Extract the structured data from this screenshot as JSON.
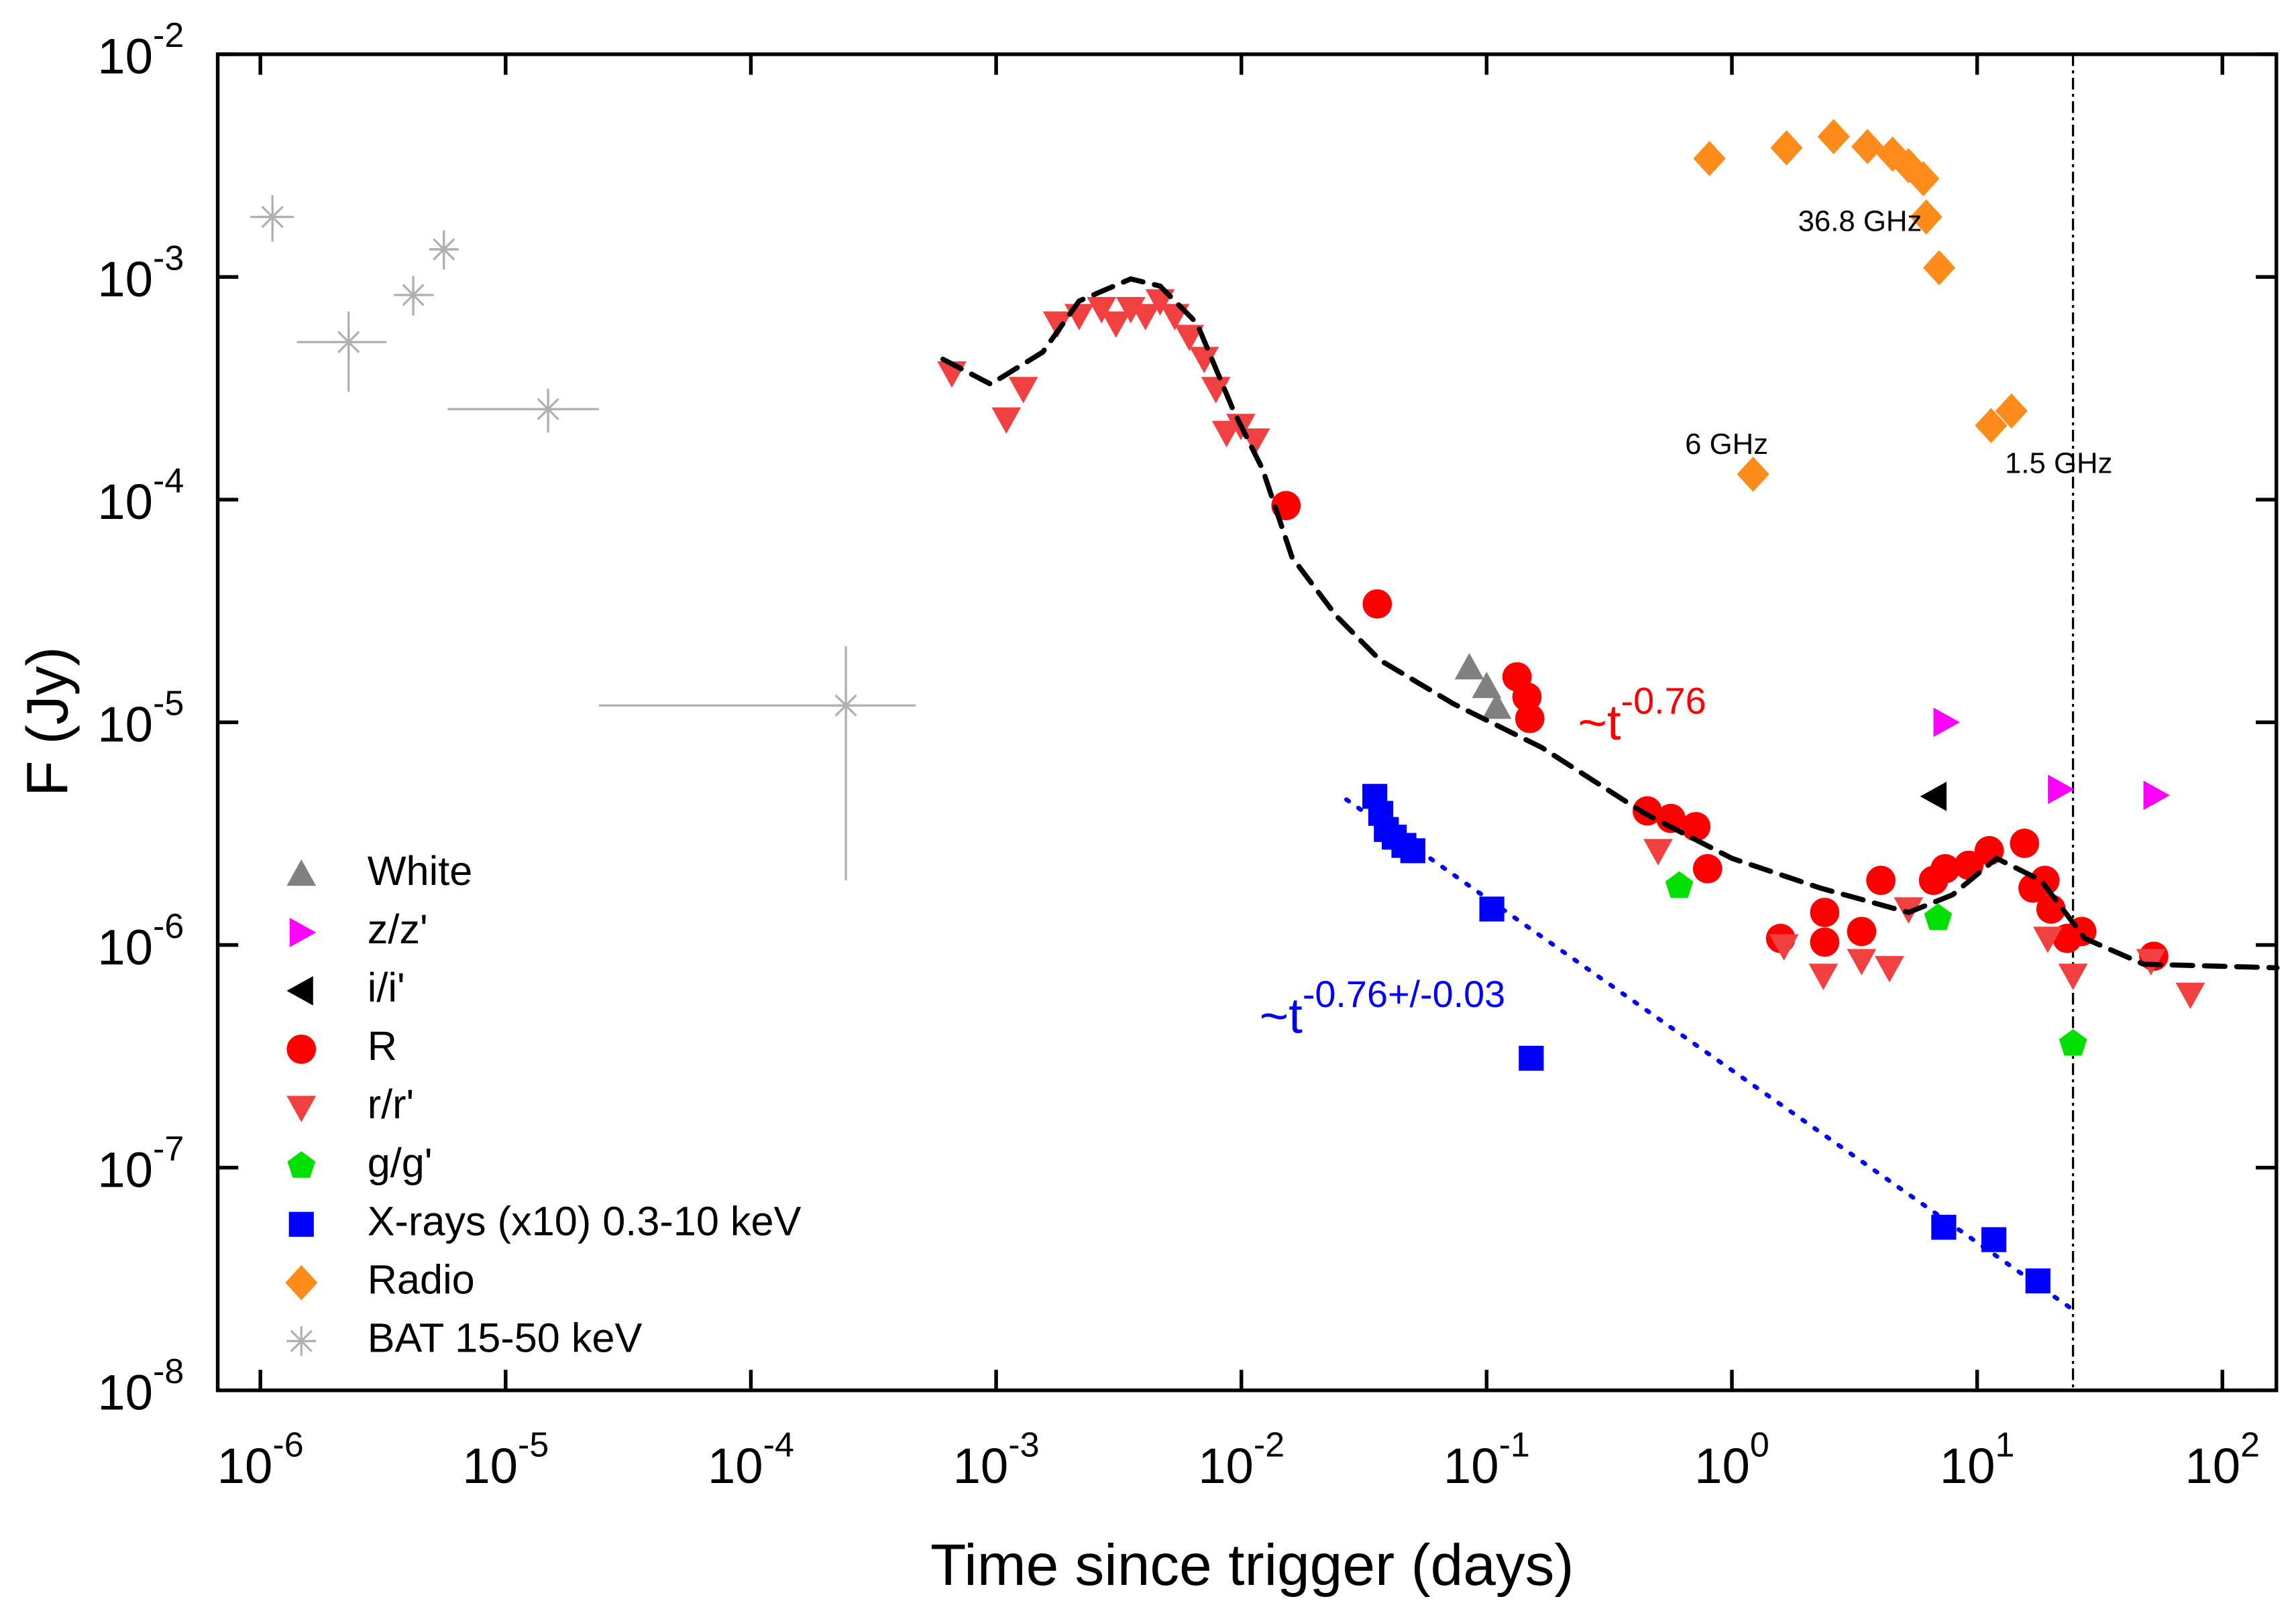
{
  "chart_data": {
    "type": "scatter",
    "xlabel": "Time since trigger (days)",
    "ylabel": "F (Jy)",
    "xscale": "log",
    "yscale": "log",
    "xlim": [
      6.7e-07,
      166
    ],
    "ylim": [
      1e-08,
      0.01
    ],
    "xticks": [
      {
        "value": 1e-06,
        "label": "10^-6"
      },
      {
        "value": 1e-05,
        "label": "10^-5"
      },
      {
        "value": 0.0001,
        "label": "10^-4"
      },
      {
        "value": 0.001,
        "label": "10^-3"
      },
      {
        "value": 0.01,
        "label": "10^-2"
      },
      {
        "value": 0.1,
        "label": "10^-1"
      },
      {
        "value": 1,
        "label": "10^0"
      },
      {
        "value": 10,
        "label": "10^1"
      },
      {
        "value": 100,
        "label": "10^2"
      }
    ],
    "yticks": [
      {
        "value": 1e-08,
        "label": "10^-8"
      },
      {
        "value": 1e-07,
        "label": "10^-7"
      },
      {
        "value": 1e-06,
        "label": "10^-6"
      },
      {
        "value": 1e-05,
        "label": "10^-5"
      },
      {
        "value": 0.0001,
        "label": "10^-4"
      },
      {
        "value": 0.001,
        "label": "10^-3"
      },
      {
        "value": 0.01,
        "label": "10^-2"
      }
    ],
    "series": [
      {
        "name": "White",
        "color": "#808080",
        "marker": "triangle-up",
        "x": [
          0.085,
          0.1,
          0.11
        ],
        "values": [
          1.76e-05,
          1.45e-05,
          1.17e-05
        ]
      },
      {
        "name": "z/z'",
        "color": "#ff00ff",
        "marker": "triangle-right",
        "x": [
          7.41,
          21.7,
          53.2
        ],
        "values": [
          1e-05,
          5e-06,
          4.7e-06
        ]
      },
      {
        "name": "i/i'",
        "color": "#000000",
        "marker": "triangle-left",
        "x": [
          6.72
        ],
        "values": [
          4.65e-06
        ]
      },
      {
        "name": "R",
        "color": "#ff0000",
        "marker": "circle",
        "x": [
          0.0152,
          0.0358,
          0.133,
          0.146,
          0.15,
          0.452,
          0.564,
          0.713,
          0.796,
          1.58,
          2.39,
          2.39,
          3.38,
          4.05,
          6.64,
          7.41,
          9.25,
          11.2,
          15.6,
          16.9,
          18.9,
          20.0,
          23.3,
          26.7,
          52.5
        ],
        "values": [
          9.4e-05,
          3.4e-05,
          1.6e-05,
          1.3e-05,
          1.04e-05,
          4e-06,
          3.7e-06,
          3.4e-06,
          2.2e-06,
          1.07e-06,
          1.4e-06,
          1.03e-06,
          1.15e-06,
          1.95e-06,
          1.95e-06,
          2.2e-06,
          2.28e-06,
          2.65e-06,
          2.86e-06,
          1.8e-06,
          1.95e-06,
          1.45e-06,
          1.07e-06,
          1.15e-06,
          8.9e-07
        ]
      },
      {
        "name": "r/r'",
        "color": "#f04040",
        "marker": "triangle-down",
        "x": [
          0.00066,
          0.0011,
          0.00129,
          0.00178,
          0.00218,
          0.00269,
          0.00308,
          0.00354,
          0.00406,
          0.00466,
          0.00535,
          0.00614,
          0.00705,
          0.00787,
          0.0087,
          0.00995,
          0.0114,
          0.5,
          1.63,
          2.36,
          3.38,
          4.39,
          5.25,
          19.4,
          24.6,
          51.1,
          74
        ],
        "values": [
          0.00037,
          0.00023,
          0.000315,
          0.00062,
          0.00067,
          0.00072,
          0.00062,
          0.00072,
          0.00067,
          0.00078,
          0.00067,
          0.00054,
          0.00043,
          0.000315,
          0.0002,
          0.000215,
          0.000185,
          2.65e-06,
          9.9e-07,
          7.3e-07,
          8.5e-07,
          7.9e-07,
          1.45e-06,
          1.07e-06,
          7.3e-07,
          8.5e-07,
          6e-07
        ]
      },
      {
        "name": "g/g'",
        "color": "#00e000",
        "marker": "pentagon",
        "x": [
          0.61,
          6.93,
          24.6
        ],
        "values": [
          1.84e-06,
          1.32e-06,
          3.6e-07
        ]
      },
      {
        "name": "X-rays (x10) 0.3-10 keV",
        "color": "#0000ff",
        "marker": "square",
        "x": [
          0.035,
          0.037,
          0.039,
          0.042,
          0.046,
          0.05,
          0.105,
          0.152,
          7.31,
          11.7,
          17.7
        ],
        "values": [
          4.65e-06,
          3.9e-06,
          3.3e-06,
          3.05e-06,
          2.8e-06,
          2.65e-06,
          1.45e-06,
          3.1e-07,
          5.4e-08,
          4.75e-08,
          3.1e-08
        ]
      },
      {
        "name": "Radio",
        "color": "#ff8c1a",
        "marker": "diamond",
        "x": [
          0.81,
          1.67,
          2.6,
          3.57,
          4.52,
          5.25,
          6.03,
          6.2,
          7.0,
          1.22,
          11.4,
          13.8
        ],
        "values": [
          0.0034,
          0.0038,
          0.00427,
          0.00385,
          0.00356,
          0.00316,
          0.00276,
          0.00186,
          0.0011,
          0.00013,
          0.000215,
          0.00025
        ]
      },
      {
        "name": "BAT 15-50 keV",
        "color": "#b0b0b0",
        "marker": "asterisk",
        "x": [
          1.12e-06,
          2.29e-06,
          4.2e-06,
          5.6e-06,
          1.49e-05,
          0.000244
        ],
        "values": [
          0.00186,
          0.00051,
          0.00083,
          0.00133,
          0.000255,
          1.19e-05
        ],
        "x_low": [
          9.1e-07,
          1.41e-06,
          3.5e-06,
          4.95e-06,
          5.8e-06,
          2.4e-05
        ],
        "x_high": [
          1.37e-06,
          3.27e-06,
          5.1e-06,
          6.4e-06,
          2.4e-05,
          0.00047
        ],
        "y_low": [
          0.00144,
          0.000305,
          0.00067,
          0.00108,
          0.0002,
          1.95e-06
        ],
        "y_high": [
          0.00233,
          0.0007,
          0.00101,
          0.00162,
          0.000315,
          2.2e-05
        ]
      },
      {
        "color": "#000000",
        "line": "dashed",
        "x": [
          0.000607,
          0.00095,
          0.00155,
          0.00218,
          0.00354,
          0.00466,
          0.00658,
          0.0093,
          0.0122,
          0.0161,
          0.0244,
          0.0368,
          0.0733,
          0.168,
          0.44,
          1.0,
          2.3,
          5.25,
          7.94,
          12.0,
          18.2,
          27.5,
          47.7,
          167
        ],
        "values": [
          0.000427,
          0.00033,
          0.00046,
          0.00078,
          0.00098,
          0.00091,
          0.00062,
          0.00025,
          0.000137,
          5.5e-05,
          3e-05,
          1.9e-05,
          1.21e-05,
          7.7e-06,
          3.9e-06,
          2.45e-06,
          1.8e-06,
          1.4e-06,
          1.68e-06,
          2.45e-06,
          1.95e-06,
          1.07e-06,
          8.2e-07,
          7.9e-07
        ]
      },
      {
        "color": "#0000ff",
        "line": "dotted",
        "x": [
          0.0268,
          24.6
        ],
        "values": [
          4.5e-06,
          2.3e-08
        ]
      }
    ],
    "vline_x": 24.6,
    "annotations": [
      {
        "text": "36.8 GHz",
        "color": "#000000"
      },
      {
        "text": "6 GHz",
        "color": "#000000"
      },
      {
        "text": "1.5 GHz",
        "color": "#000000"
      },
      {
        "text": "~t",
        "superscript": "-0.76",
        "color": "#ff0000"
      },
      {
        "text": "~t",
        "superscript": "-0.76+/-0.03",
        "color": "#0000ff"
      }
    ]
  }
}
